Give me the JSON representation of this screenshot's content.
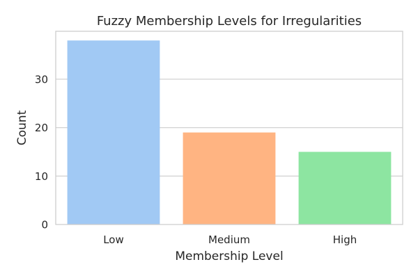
{
  "chart_data": {
    "type": "bar",
    "title": "Fuzzy Membership Levels for Irregularities",
    "xlabel": "Membership Level",
    "ylabel": "Count",
    "categories": [
      "Low",
      "Medium",
      "High"
    ],
    "values": [
      38,
      19,
      15
    ],
    "ylim": [
      0,
      39.9
    ],
    "yticks": [
      0,
      10,
      20,
      30
    ],
    "grid": "horizontal",
    "colors": [
      "#a1c9f4",
      "#ffb482",
      "#8de5a1"
    ]
  }
}
